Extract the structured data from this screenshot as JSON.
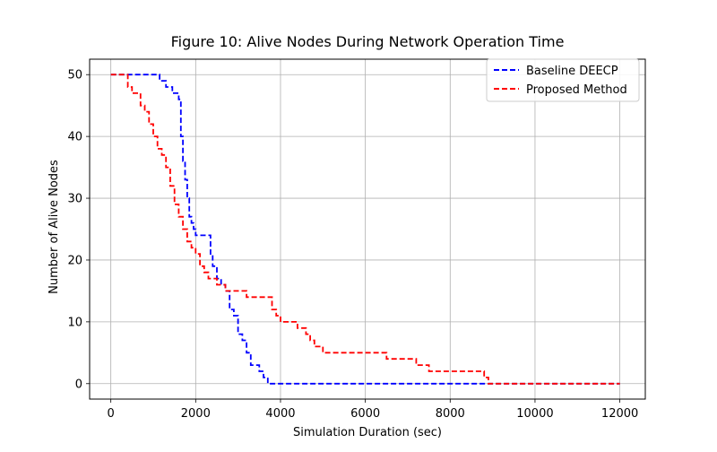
{
  "chart_data": {
    "type": "line",
    "title": "Figure 10: Alive Nodes During Network Operation Time",
    "xlabel": "Simulation Duration (sec)",
    "ylabel": "Number of Alive Nodes",
    "xlim": [
      -500,
      12600
    ],
    "ylim": [
      -2.5,
      52.5
    ],
    "xticks": [
      0,
      2000,
      4000,
      6000,
      8000,
      10000,
      12000
    ],
    "yticks": [
      0,
      10,
      20,
      30,
      40,
      50
    ],
    "xtick_labels": [
      "0",
      "2000",
      "4000",
      "6000",
      "8000",
      "10000",
      "12000"
    ],
    "ytick_labels": [
      "0",
      "10",
      "20",
      "30",
      "40",
      "50"
    ],
    "grid": true,
    "legend_position": "top-right",
    "series": [
      {
        "name": "Baseline DEECP",
        "color": "#0000ff",
        "line_style": "dashed",
        "step": true,
        "x": [
          0,
          1150,
          1300,
          1450,
          1600,
          1650,
          1700,
          1750,
          1800,
          1850,
          1900,
          1950,
          2000,
          2100,
          2350,
          2400,
          2500,
          2600,
          2700,
          2800,
          2900,
          3000,
          3100,
          3200,
          3300,
          3500,
          3600,
          3700,
          12000
        ],
        "y": [
          50,
          49,
          48,
          47,
          46,
          40,
          36,
          33,
          30,
          27,
          26,
          25,
          24,
          24,
          21,
          19,
          17,
          16,
          15,
          12,
          11,
          8,
          7,
          5,
          3,
          2,
          1,
          0,
          0
        ]
      },
      {
        "name": "Proposed Method",
        "color": "#ff0000",
        "line_style": "dashed",
        "step": true,
        "x": [
          0,
          400,
          500,
          700,
          800,
          900,
          1000,
          1100,
          1200,
          1300,
          1400,
          1500,
          1600,
          1700,
          1800,
          1900,
          2000,
          2100,
          2200,
          2300,
          2400,
          2500,
          2600,
          2700,
          2800,
          2900,
          3000,
          3200,
          3700,
          3800,
          3900,
          4000,
          4200,
          4400,
          4600,
          4700,
          4800,
          4900,
          5000,
          5200,
          6500,
          7200,
          7500,
          8800,
          8900,
          12000
        ],
        "y": [
          50,
          48,
          47,
          45,
          44,
          42,
          40,
          38,
          37,
          35,
          32,
          29,
          27,
          25,
          23,
          22,
          21,
          19,
          18,
          17,
          17,
          16,
          16,
          15,
          15,
          15,
          15,
          14,
          14,
          12,
          11,
          10,
          10,
          9,
          8,
          7,
          6,
          6,
          5,
          5,
          4,
          3,
          2,
          1,
          0,
          0
        ]
      }
    ]
  }
}
